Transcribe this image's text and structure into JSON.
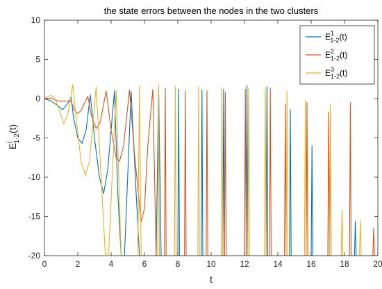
{
  "chart_data": {
    "type": "line",
    "title": "the state errors between the nodes in the two clusters",
    "xlabel": "t",
    "ylabel": {
      "base": "E",
      "superscript": "j",
      "subscript": "1-2",
      "suffix": "(t)"
    },
    "xlim": [
      0,
      20
    ],
    "ylim": [
      -20,
      10
    ],
    "xticks": [
      "0",
      "2",
      "4",
      "6",
      "8",
      "10",
      "12",
      "14",
      "16",
      "18",
      "20"
    ],
    "yticks": [
      "10",
      "5",
      "0",
      "-5",
      "-10",
      "-15",
      "-20"
    ],
    "grid": false,
    "legend_position": "top-right",
    "series": [
      {
        "name": "E^1_{1-2}(t)",
        "legend": {
          "base": "E",
          "superscript": "1",
          "subscript": "1-2",
          "suffix": "(t)"
        },
        "color": "#0072BD",
        "points": [
          [
            0,
            0
          ],
          [
            0.4,
            -0.3
          ],
          [
            0.8,
            -0.9
          ],
          [
            1.1,
            -1.4
          ],
          [
            1.4,
            -0.6
          ],
          [
            1.6,
            0.2
          ],
          [
            1.75,
            -2.5
          ],
          [
            2.0,
            -5.0
          ],
          [
            2.25,
            -5.7
          ],
          [
            2.5,
            -4.0
          ],
          [
            2.75,
            0.5
          ],
          [
            3.0,
            -5.0
          ],
          [
            3.3,
            -10.0
          ],
          [
            3.55,
            -12.1
          ],
          [
            3.8,
            -9.0
          ],
          [
            4.2,
            1.0
          ],
          [
            4.4,
            -12.0
          ],
          [
            4.6,
            -20
          ],
          [
            4.8,
            -20
          ],
          [
            5.2,
            0.9
          ],
          [
            5.5,
            -12.0
          ],
          [
            5.7,
            -20
          ],
          [
            6.7,
            -20
          ],
          [
            6.85,
            1.5
          ],
          [
            7.0,
            -20
          ],
          [
            8.0,
            -20
          ],
          [
            8.05,
            1.2
          ],
          [
            8.1,
            -20
          ],
          [
            9.4,
            -20
          ],
          [
            9.45,
            1.1
          ],
          [
            9.5,
            -20
          ],
          [
            10.7,
            -20
          ],
          [
            10.75,
            1.2
          ],
          [
            10.8,
            -20
          ],
          [
            12.1,
            -20
          ],
          [
            12.15,
            1.7
          ],
          [
            12.2,
            -20
          ],
          [
            13.3,
            -20
          ],
          [
            13.35,
            1.5
          ],
          [
            13.4,
            -20
          ],
          [
            14.7,
            -20
          ],
          [
            14.75,
            -1.4
          ],
          [
            14.8,
            -20
          ],
          [
            16.0,
            -20
          ],
          [
            16.05,
            -6.0
          ],
          [
            16.1,
            -20
          ],
          [
            17.1,
            -20
          ],
          [
            17.15,
            -2.1
          ],
          [
            17.2,
            -20
          ],
          [
            18.6,
            -20
          ],
          [
            18.65,
            -15.6
          ],
          [
            18.7,
            -20
          ]
        ]
      },
      {
        "name": "E^2_{1-2}(t)",
        "legend": {
          "base": "E",
          "superscript": "2",
          "subscript": "1-2",
          "suffix": "(t)"
        },
        "color": "#D95319",
        "points": [
          [
            0,
            0
          ],
          [
            0.4,
            0.05
          ],
          [
            0.8,
            -0.3
          ],
          [
            1.2,
            -0.3
          ],
          [
            1.6,
            -0.3
          ],
          [
            1.8,
            -1.5
          ],
          [
            2.0,
            -1.9
          ],
          [
            2.2,
            -1.5
          ],
          [
            2.6,
            0.3
          ],
          [
            2.8,
            -2.0
          ],
          [
            3.1,
            -3.8
          ],
          [
            3.35,
            -3.0
          ],
          [
            3.7,
            1.0
          ],
          [
            4.0,
            -4.0
          ],
          [
            4.3,
            -7.5
          ],
          [
            4.5,
            -8.0
          ],
          [
            4.75,
            -6.0
          ],
          [
            5.1,
            1.1
          ],
          [
            5.4,
            -7.0
          ],
          [
            5.8,
            -15.7
          ],
          [
            6.0,
            -14.0
          ],
          [
            6.2,
            -6.0
          ],
          [
            6.5,
            1.2
          ],
          [
            6.7,
            -20
          ],
          [
            7.2,
            -20
          ],
          [
            7.25,
            1.3
          ],
          [
            7.3,
            -20
          ],
          [
            8.4,
            -20
          ],
          [
            8.45,
            1.0
          ],
          [
            8.5,
            -20
          ],
          [
            9.7,
            -20
          ],
          [
            9.75,
            1.0
          ],
          [
            9.8,
            -20
          ],
          [
            10.8,
            -20
          ],
          [
            10.85,
            0.8
          ],
          [
            10.9,
            -20
          ],
          [
            12.0,
            -20
          ],
          [
            12.05,
            1.2
          ],
          [
            12.1,
            -20
          ],
          [
            13.5,
            -20
          ],
          [
            13.55,
            1.3
          ],
          [
            13.6,
            -20
          ],
          [
            14.4,
            -20
          ],
          [
            14.45,
            -0.7
          ],
          [
            14.5,
            -20
          ],
          [
            15.7,
            -20
          ],
          [
            15.75,
            -0.5
          ],
          [
            15.8,
            -20
          ],
          [
            17.0,
            -20
          ],
          [
            17.05,
            -1.7
          ],
          [
            17.1,
            -20
          ],
          [
            18.3,
            -20
          ],
          [
            18.35,
            -0.5
          ],
          [
            18.4,
            -20
          ],
          [
            19.7,
            -20
          ],
          [
            19.75,
            -16.5
          ],
          [
            19.8,
            -20
          ]
        ]
      },
      {
        "name": "E^3_{1-2}(t)",
        "legend": {
          "base": "E",
          "superscript": "3",
          "subscript": "1-2",
          "suffix": "(t)"
        },
        "color": "#EDB120",
        "points": [
          [
            0,
            0
          ],
          [
            0.2,
            0.3
          ],
          [
            0.4,
            0.4
          ],
          [
            0.6,
            0.1
          ],
          [
            0.9,
            -1.5
          ],
          [
            1.15,
            -3.2
          ],
          [
            1.4,
            -2.0
          ],
          [
            1.7,
            1.8
          ],
          [
            1.9,
            -2.5
          ],
          [
            2.2,
            -8.0
          ],
          [
            2.45,
            -9.8
          ],
          [
            2.7,
            -8.0
          ],
          [
            3.1,
            1.5
          ],
          [
            3.4,
            -10.0
          ],
          [
            3.65,
            -19.8
          ],
          [
            3.85,
            -19.8
          ],
          [
            4.3,
            1.0
          ],
          [
            4.6,
            -20
          ],
          [
            5.6,
            -20
          ],
          [
            5.7,
            1.6
          ],
          [
            5.8,
            -20
          ],
          [
            6.8,
            -20
          ],
          [
            6.85,
            1.8
          ],
          [
            6.9,
            -20
          ],
          [
            7.8,
            -20
          ],
          [
            7.85,
            1.6
          ],
          [
            7.9,
            -20
          ],
          [
            9.2,
            -20
          ],
          [
            9.25,
            1.5
          ],
          [
            9.3,
            -20
          ],
          [
            10.6,
            -20
          ],
          [
            10.65,
            1.4
          ],
          [
            10.7,
            -20
          ],
          [
            12.2,
            -20
          ],
          [
            12.25,
            1.3
          ],
          [
            12.3,
            -20
          ],
          [
            13.2,
            -20
          ],
          [
            13.25,
            1.4
          ],
          [
            13.3,
            -20
          ],
          [
            14.5,
            -20
          ],
          [
            14.55,
            1.0
          ],
          [
            14.6,
            -20
          ],
          [
            15.6,
            -20
          ],
          [
            15.65,
            -0.2
          ],
          [
            15.7,
            -20
          ],
          [
            17.1,
            -20
          ],
          [
            17.15,
            -0.7
          ],
          [
            17.2,
            -20
          ],
          [
            17.8,
            -20
          ],
          [
            17.85,
            -14.2
          ],
          [
            17.9,
            -20
          ],
          [
            18.9,
            -20
          ],
          [
            18.95,
            -15.5
          ],
          [
            19.0,
            -20
          ]
        ]
      }
    ]
  }
}
